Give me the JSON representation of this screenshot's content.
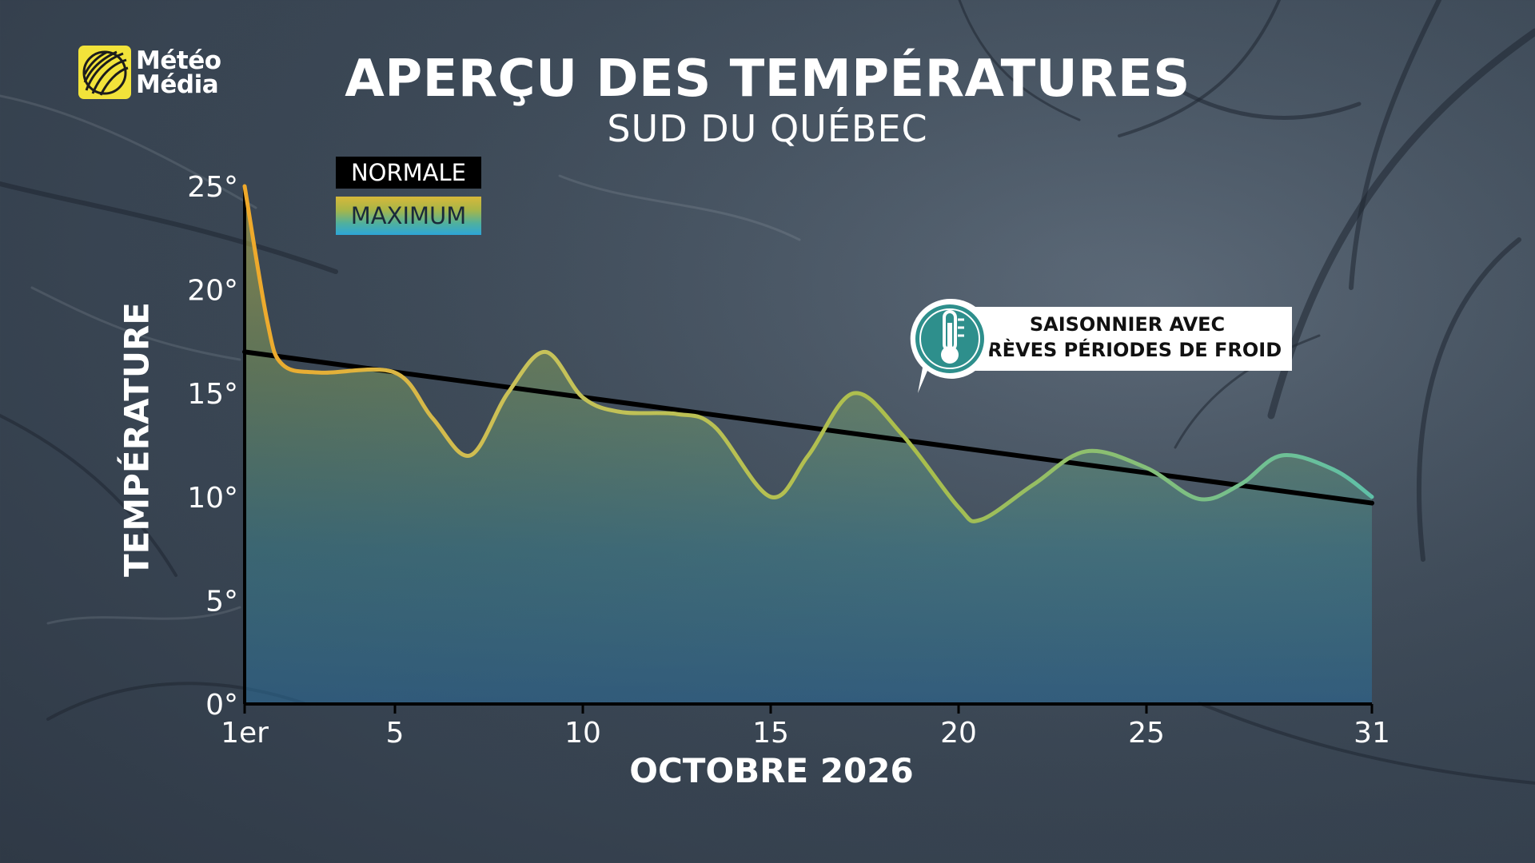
{
  "brand": {
    "line1": "Météo",
    "line2": "Média"
  },
  "title": "APERÇU DES TEMPÉRATURES",
  "subtitle": "SUD DU QUÉBEC",
  "legend": {
    "normal": "NORMALE",
    "maximum": "MAXIMUM"
  },
  "callout": {
    "line1": "SAISONNIER AVEC",
    "line2": "BRÈVES PÉRIODES DE FROID",
    "icon": "thermometer-icon"
  },
  "colors": {
    "normal_line": "#000000",
    "max_top": "#f0a92a",
    "max_mid": "#a9be4c",
    "max_bottom": "#5fc0a8",
    "callout_accent": "#2e8f8c"
  },
  "chart_data": {
    "type": "line",
    "xlabel": "OCTOBRE 2026",
    "ylabel": "TEMPÉRATURE",
    "xlim": [
      1,
      31
    ],
    "ylim": [
      0,
      25
    ],
    "x_ticks": [
      1,
      5,
      10,
      15,
      20,
      25,
      31
    ],
    "x_tick_labels": [
      "1er",
      "5",
      "10",
      "15",
      "20",
      "25",
      "31"
    ],
    "y_ticks": [
      0,
      5,
      10,
      15,
      20,
      25
    ],
    "y_tick_labels": [
      "0°",
      "5°",
      "10°",
      "15°",
      "20°",
      "25°"
    ],
    "grid": false,
    "series": [
      {
        "name": "NORMALE",
        "x": [
          1,
          31
        ],
        "values": [
          17,
          9.7
        ]
      },
      {
        "name": "MAXIMUM",
        "x": [
          1,
          1.6,
          2,
          3,
          5,
          6,
          7,
          8,
          9,
          10,
          11,
          12.5,
          13.5,
          15,
          16,
          17.2,
          18.5,
          20,
          20.6,
          22,
          23.4,
          25,
          26.4,
          27.5,
          28.6,
          30,
          31
        ],
        "values": [
          25,
          18.5,
          16.4,
          16,
          16,
          13.8,
          12,
          15,
          17,
          14.8,
          14.1,
          14,
          13.4,
          10,
          12,
          15,
          13,
          9.5,
          8.9,
          10.6,
          12.2,
          11.4,
          9.9,
          10.6,
          12.0,
          11.3,
          10
        ]
      }
    ]
  }
}
